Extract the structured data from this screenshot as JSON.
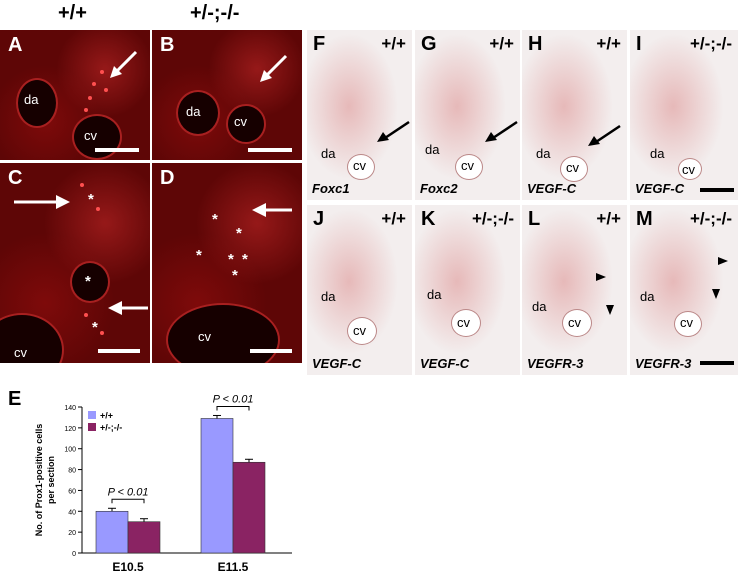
{
  "genotypes": {
    "wild_type": "+/+",
    "mutant": "+/-;-/-"
  },
  "fluor_panels": [
    {
      "id": "A",
      "lumens": [
        "da",
        "cv"
      ]
    },
    {
      "id": "B",
      "lumens": [
        "da",
        "cv"
      ]
    },
    {
      "id": "C",
      "lumens": [
        "cv"
      ]
    },
    {
      "id": "D",
      "lumens": [
        "cv"
      ]
    }
  ],
  "ish_panels": [
    {
      "id": "F",
      "genotype": "+/+",
      "gene": "Foxc1",
      "lumens": [
        "da",
        "cv"
      ]
    },
    {
      "id": "G",
      "genotype": "+/+",
      "gene": "Foxc2",
      "lumens": [
        "da",
        "cv"
      ]
    },
    {
      "id": "H",
      "genotype": "+/+",
      "gene": "VEGF-C",
      "lumens": [
        "da",
        "cv"
      ]
    },
    {
      "id": "I",
      "genotype": "+/-;-/-",
      "gene": "VEGF-C",
      "lumens": [
        "da",
        "cv"
      ]
    },
    {
      "id": "J",
      "genotype": "+/+",
      "gene": "VEGF-C",
      "lumens": [
        "da",
        "cv"
      ]
    },
    {
      "id": "K",
      "genotype": "+/-;-/-",
      "gene": "VEGF-C",
      "lumens": [
        "da",
        "cv"
      ]
    },
    {
      "id": "L",
      "genotype": "+/+",
      "gene": "VEGFR-3",
      "lumens": [
        "da",
        "cv"
      ]
    },
    {
      "id": "M",
      "genotype": "+/-;-/-",
      "gene": "VEGFR-3",
      "lumens": [
        "da",
        "cv"
      ]
    }
  ],
  "chart_panel_label": "E",
  "star_symbol": "*",
  "chart_data": {
    "type": "bar",
    "categories": [
      "E10.5",
      "E11.5"
    ],
    "series": [
      {
        "name": "+/+",
        "values": [
          40,
          129
        ],
        "color": "#9999ff"
      },
      {
        "name": "+/-;-/-",
        "values": [
          30,
          87
        ],
        "color": "#8a2363"
      }
    ],
    "ylabel": "No. of Prox1-positive cells per section",
    "ylabel_lines": [
      "No. of Prox1-positive cells",
      "per section"
    ],
    "ylim": [
      0,
      140
    ],
    "yticks": [
      0,
      20,
      40,
      60,
      80,
      100,
      120,
      140
    ],
    "annotations": [
      "P < 0.01",
      "P < 0.01"
    ],
    "legend_position": "top-left"
  }
}
